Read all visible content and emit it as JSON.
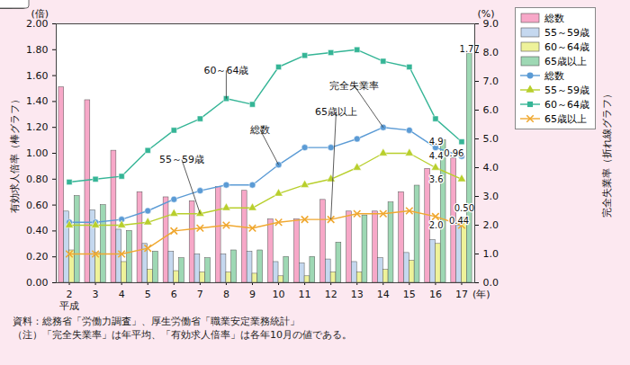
{
  "chart_data": {
    "type": "bar",
    "x_prefix": "平成",
    "x_label": "(年)",
    "y_label": "有効求人倍率（棒グラフ）",
    "y_unit": "(倍)",
    "y2_label": "完全失業率（折れ線グラフ）",
    "y2_unit": "(%)",
    "categories": [
      "2",
      "3",
      "4",
      "5",
      "6",
      "7",
      "8",
      "9",
      "10",
      "11",
      "12",
      "13",
      "14",
      "15",
      "16",
      "17"
    ],
    "ylim": [
      0,
      2
    ],
    "yticks": [
      {
        "value": 0,
        "label": "0.00"
      },
      {
        "value": 0.2,
        "label": "0.20"
      },
      {
        "value": 0.4,
        "label": "0.40"
      },
      {
        "value": 0.6,
        "label": "0.60"
      },
      {
        "value": 0.8,
        "label": "0.80"
      },
      {
        "value": 1,
        "label": "1.00"
      },
      {
        "value": 1.2,
        "label": "1.20"
      },
      {
        "value": 1.4,
        "label": "1.40"
      },
      {
        "value": 1.6,
        "label": "1.60"
      },
      {
        "value": 1.8,
        "label": "1.80"
      },
      {
        "value": 2,
        "label": "2.00"
      }
    ],
    "y2lim": [
      0,
      9
    ],
    "y2ticks": [
      {
        "value": 0,
        "label": "0.0"
      },
      {
        "value": 1,
        "label": "1.0"
      },
      {
        "value": 2,
        "label": "2.0"
      },
      {
        "value": 3,
        "label": "3.0"
      },
      {
        "value": 4,
        "label": "4.0"
      },
      {
        "value": 5,
        "label": "5.0"
      },
      {
        "value": 6,
        "label": "6.0"
      },
      {
        "value": 7,
        "label": "7.0"
      },
      {
        "value": 8,
        "label": "8.0"
      },
      {
        "value": 9,
        "label": "9.0"
      }
    ],
    "grid": false,
    "legend": "top-right",
    "data_labels": true,
    "series": [
      {
        "name": "総数",
        "type": "bar",
        "color": "#f7a8c8",
        "values": [
          1.51,
          1.41,
          1.02,
          0.7,
          0.66,
          0.63,
          0.74,
          0.71,
          0.49,
          0.49,
          0.64,
          0.55,
          0.55,
          0.7,
          0.88,
          0.96
        ],
        "value_labels": [
          null,
          null,
          null,
          null,
          null,
          null,
          null,
          null,
          null,
          null,
          null,
          null,
          null,
          null,
          null,
          "0.96"
        ]
      },
      {
        "name": "55～59歳",
        "type": "bar",
        "color": "#c5d8ef",
        "values": [
          0.55,
          0.56,
          0.41,
          0.3,
          0.24,
          0.22,
          0.22,
          0.24,
          0.16,
          0.15,
          0.18,
          0.16,
          0.19,
          0.23,
          0.33,
          0.44
        ],
        "value_labels": [
          null,
          null,
          null,
          null,
          null,
          null,
          null,
          null,
          null,
          null,
          null,
          null,
          null,
          null,
          null,
          "0.44"
        ]
      },
      {
        "name": "60～64歳",
        "type": "bar",
        "color": "#eef29a",
        "values": [
          0.25,
          0.23,
          0.16,
          0.1,
          0.09,
          0.08,
          0.08,
          0.07,
          0.05,
          0.05,
          0.08,
          0.08,
          0.1,
          0.17,
          0.3,
          0.5
        ],
        "value_labels": [
          null,
          null,
          null,
          null,
          null,
          null,
          null,
          null,
          null,
          null,
          null,
          null,
          null,
          null,
          null,
          "0.50"
        ]
      },
      {
        "name": "65歳以上",
        "type": "bar",
        "color": "#9ed8b4",
        "values": [
          0.67,
          0.6,
          0.4,
          0.24,
          0.19,
          0.19,
          0.25,
          0.25,
          0.2,
          0.2,
          0.31,
          0.52,
          0.62,
          0.75,
          1.1,
          1.77
        ],
        "value_labels": [
          null,
          null,
          null,
          null,
          null,
          null,
          null,
          null,
          null,
          null,
          null,
          null,
          null,
          null,
          null,
          "1.77"
        ]
      },
      {
        "name": "総数",
        "type": "line",
        "axis": "y2",
        "color": "#5b9bd5",
        "marker": "circle",
        "values": [
          2.1,
          2.1,
          2.2,
          2.5,
          2.9,
          3.2,
          3.4,
          3.4,
          4.1,
          4.7,
          4.7,
          5.0,
          5.4,
          5.3,
          4.7,
          4.4
        ],
        "value_labels": [
          null,
          null,
          null,
          null,
          null,
          null,
          null,
          null,
          null,
          null,
          null,
          null,
          null,
          null,
          null,
          "4.4"
        ]
      },
      {
        "name": "55～59歳",
        "type": "line",
        "axis": "y2",
        "color": "#b8cf2c",
        "marker": "triangle",
        "values": [
          2.0,
          2.0,
          2.0,
          2.1,
          2.4,
          2.4,
          2.6,
          2.6,
          3.1,
          3.4,
          3.6,
          4.0,
          4.5,
          4.5,
          4.0,
          3.6
        ],
        "value_labels": [
          null,
          null,
          null,
          null,
          null,
          null,
          null,
          null,
          null,
          null,
          null,
          null,
          null,
          null,
          null,
          "3.6"
        ]
      },
      {
        "name": "60～64歳",
        "type": "line",
        "axis": "y2",
        "color": "#35b596",
        "marker": "square",
        "values": [
          3.5,
          3.6,
          3.7,
          4.6,
          5.3,
          5.7,
          6.4,
          6.2,
          7.5,
          7.9,
          8.0,
          8.1,
          7.7,
          7.5,
          5.7,
          4.9
        ],
        "value_labels": [
          null,
          null,
          null,
          null,
          null,
          null,
          null,
          null,
          null,
          null,
          null,
          null,
          null,
          null,
          null,
          "4.9"
        ]
      },
      {
        "name": "65歳以上",
        "type": "line",
        "axis": "y2",
        "color": "#f0a830",
        "marker": "x",
        "values": [
          1.0,
          1.0,
          1.0,
          1.2,
          1.8,
          1.9,
          2.0,
          1.9,
          2.1,
          2.2,
          2.2,
          2.4,
          2.4,
          2.5,
          2.3,
          2.0
        ],
        "value_labels": [
          null,
          null,
          null,
          null,
          null,
          null,
          null,
          null,
          null,
          null,
          null,
          null,
          null,
          null,
          null,
          "2.0"
        ]
      }
    ],
    "annotations": [
      {
        "text": "60～64歳",
        "target": "60～64歳"
      },
      {
        "text": "55～59歳",
        "target": "55～59歳"
      },
      {
        "text": "総数",
        "target": "総数"
      },
      {
        "text": "65歳以上",
        "target": "65歳以上"
      },
      {
        "text": "完全失業率",
        "target": "総数"
      }
    ],
    "notes": [
      "資料：総務省「労働力調査」、厚生労働省「職業安定業務統計」",
      "（注）「完全失業率」は年平均、「有効求人倍率」は各年10月の値である。"
    ]
  }
}
